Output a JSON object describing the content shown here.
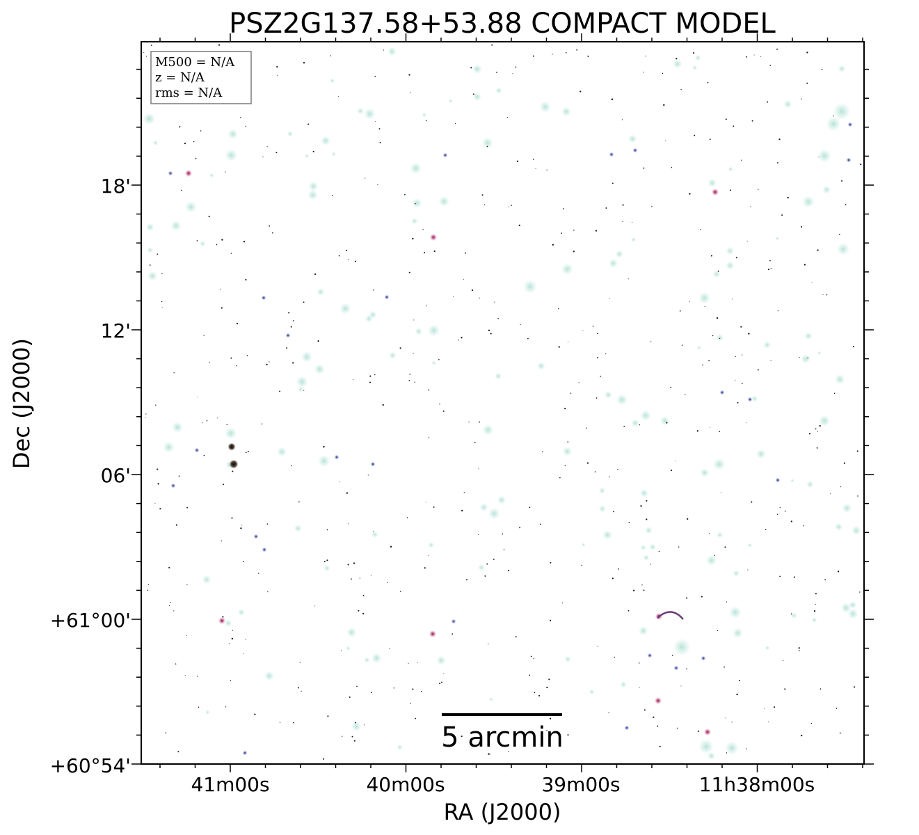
{
  "figure": {
    "title": "PSZ2G137.58+53.88 COMPACT MODEL",
    "xlabel": "RA (J2000)",
    "ylabel": "Dec (J2000)",
    "x_ticks": [
      "41m00s",
      "40m00s",
      "39m00s",
      "11h38m00s"
    ],
    "y_ticks": [
      "18'",
      "12'",
      "06'",
      "+61°00'",
      "+60°54'"
    ],
    "info_box": {
      "line1": "M500 = N/A",
      "line2": "z = N/A",
      "line3": "rms = N/A"
    },
    "scale_bar": {
      "label": "5 arcmin"
    }
  }
}
